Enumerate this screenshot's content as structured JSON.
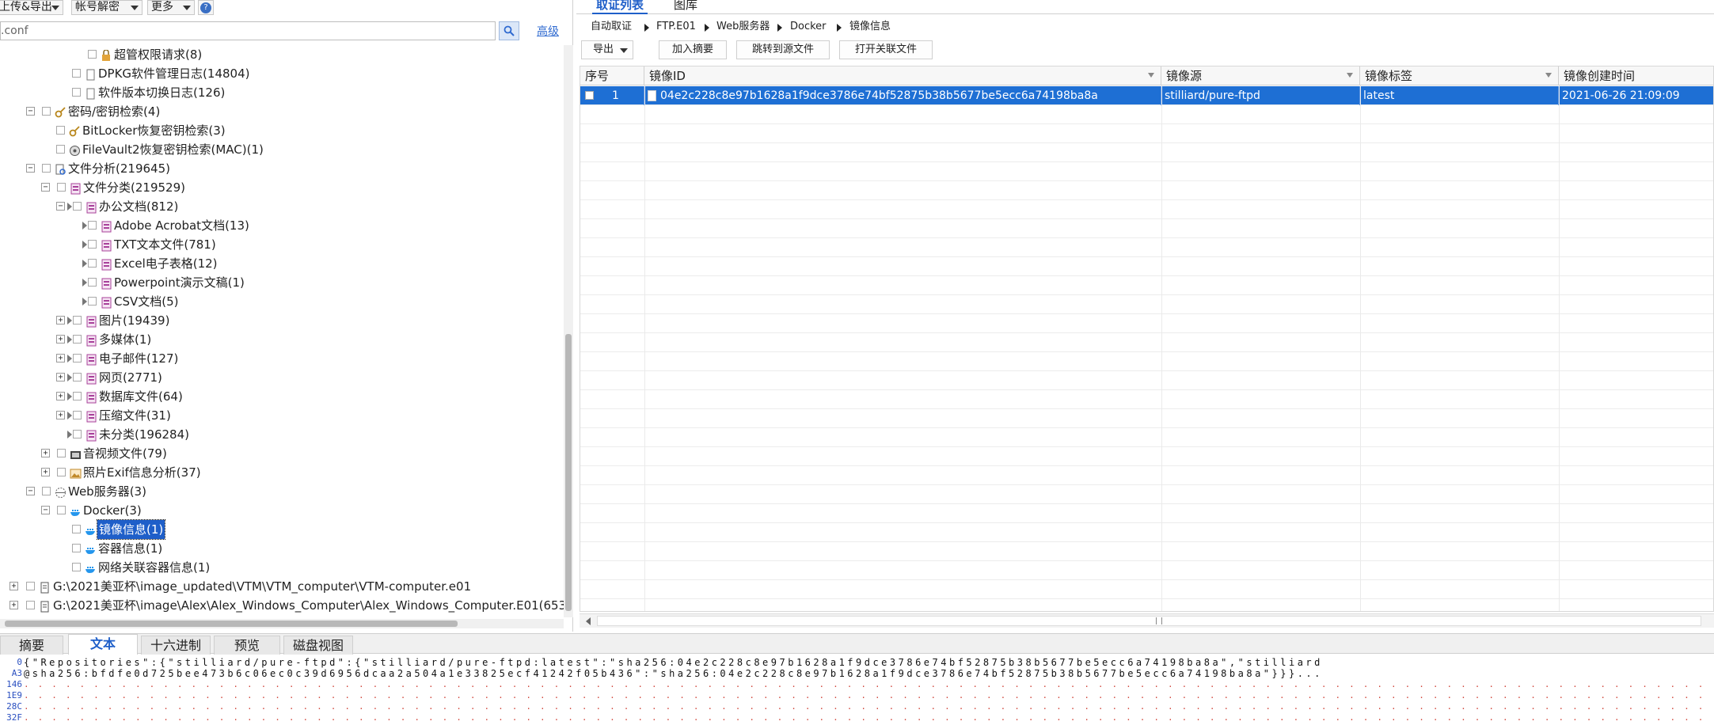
{
  "toolbar": {
    "upload_export": "上传&导出",
    "account_decrypt": "帐号解密",
    "more": "更多",
    "help_icon": "?"
  },
  "search": {
    "value": ".conf",
    "advanced": "高级"
  },
  "tree": {
    "superuser": "超管权限请求(8)",
    "dpkg": "DPKG软件管理日志(14804)",
    "swver": "软件版本切换日志(126)",
    "passkey": "密码/密钥检索(4)",
    "bitlocker": "BitLocker恢复密钥检索(3)",
    "filevault": "FileVault2恢复密钥检索(MAC)(1)",
    "fileanalysis": "文件分析(219645)",
    "filecat": "文件分类(219529)",
    "office": "办公文档(812)",
    "adobe": "Adobe Acrobat文档(13)",
    "txt": "TXT文本文件(781)",
    "excel": "Excel电子表格(12)",
    "ppt": "Powerpoint演示文稿(1)",
    "csv": "CSV文档(5)",
    "image": "图片(19439)",
    "media": "多媒体(1)",
    "email": "电子邮件(127)",
    "web": "网页(2771)",
    "db": "数据库文件(64)",
    "zip": "压缩文件(31)",
    "uncat": "未分类(196284)",
    "av": "音视频文件(79)",
    "exif": "照片Exif信息分析(37)",
    "webserver": "Web服务器(3)",
    "docker": "Docker(3)",
    "mirror": "镜像信息(1)",
    "container": "容器信息(1)",
    "network": "网络关联容器信息(1)",
    "evidence1": "G:\\2021美亚杯\\image_updated\\VTM\\VTM_computer\\VTM-computer.e01",
    "evidence2": "G:\\2021美亚杯\\image\\Alex\\Alex_Windows_Computer\\Alex_Windows_Computer.E01(653"
  },
  "right_tabs": [
    "取证列表",
    "图库"
  ],
  "breadcrumb": [
    "自动取证",
    "FTP.E01",
    "Web服务器",
    "Docker",
    "镜像信息"
  ],
  "actions": {
    "export": "导出",
    "add_summary": "加入摘要",
    "jump_source": "跳转到源文件",
    "open_linked": "打开关联文件"
  },
  "table": {
    "headers": [
      "序号",
      "镜像ID",
      "镜像源",
      "镜像标签",
      "镜像创建时间"
    ],
    "rows": [
      {
        "index": "1",
        "id": "04e2c228c8e97b1628a1f9dce3786e74bf52875b38b5677be5ecc6a74198ba8a",
        "source": "stilliard/pure-ftpd",
        "tag": "latest",
        "created": "2021-06-26 21:09:09"
      }
    ]
  },
  "bottom_tabs": [
    "摘要",
    "文本",
    "十六进制",
    "预览",
    "磁盘视图"
  ],
  "text_view": {
    "lines": [
      {
        "offset": "0",
        "text": "{\"Repositories\":{\"stilliard/pure-ftpd\":{\"stilliard/pure-ftpd:latest\":\"sha256:04e2c228c8e97b1628a1f9dce3786e74bf52875b38b5677be5ecc6a74198ba8a\",\"stilliard"
      },
      {
        "offset": "A3",
        "text": "@sha256:bfdfe0d725bee473b6c06ec0c39d6956dcaa2a504a1e33825ecf41242f05b436\":\"sha256:04e2c228c8e97b1628a1f9dce3786e74bf52875b38b5677be5ecc6a74198ba8a\"}}}..."
      },
      {
        "offset": "146",
        "text": ""
      },
      {
        "offset": "1E9",
        "text": ""
      },
      {
        "offset": "28C",
        "text": ""
      },
      {
        "offset": "32F",
        "text": ""
      }
    ]
  }
}
